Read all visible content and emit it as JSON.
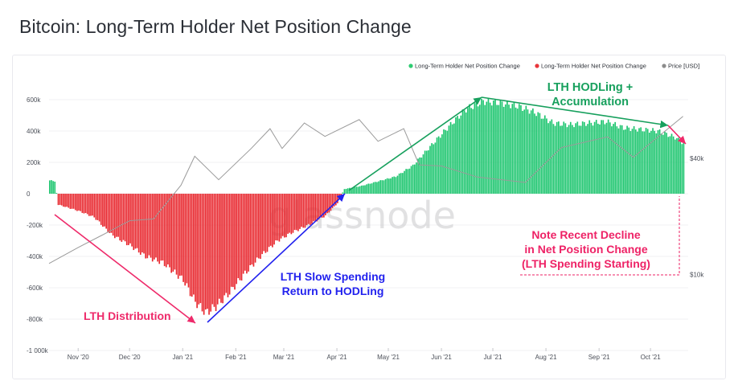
{
  "page": {
    "title": "Bitcoin: Long-Term Holder Net Position Change"
  },
  "watermark": "glassnode",
  "legend": [
    {
      "label": "Long-Term Holder Net Position Change",
      "color": "#2ecc71"
    },
    {
      "label": "Long-Term Holder Net Position Change",
      "color": "#e8363b"
    },
    {
      "label": "Price [USD]",
      "color": "#8c8c8c"
    }
  ],
  "annotations": {
    "distribution": "LTH Distribution",
    "slow_spending_1": "LTH Slow Spending",
    "slow_spending_2": "Return to HODLing",
    "hodling_1": "LTH HODLing +",
    "hodling_2": "Accumulation",
    "note_1": "Note Recent Decline",
    "note_2": "in Net Position Change",
    "note_3": "(LTH Spending Starting)"
  },
  "colors": {
    "positive": "#1cc56e",
    "negative": "#e8262d",
    "price": "#9a9a9a",
    "distribution_arrow": "#ee2a6a",
    "spending_arrow": "#2222ee",
    "hodl_arrow": "#17a05d",
    "note_color": "#ee2266"
  },
  "chart_data": {
    "type": "bar",
    "title": "Bitcoin: Long-Term Holder Net Position Change",
    "x_ticks": [
      "Nov '20",
      "Dec '20",
      "Jan '21",
      "Feb '21",
      "Mar '21",
      "Apr '21",
      "May '21",
      "Jun '21",
      "Jul '21",
      "Aug '21",
      "Sep '21",
      "Oct '21"
    ],
    "x_range": [
      "2020-10-15",
      "2021-10-23"
    ],
    "y_left": {
      "ticks": [
        600000,
        400000,
        200000,
        0,
        -200000,
        -400000,
        -600000,
        -800000,
        -1000000
      ],
      "tick_labels": [
        "600k",
        "400k",
        "200k",
        "0",
        "-200k",
        "-400k",
        "-600k",
        "-800k",
        "-1 000k"
      ],
      "range": [
        -1000000,
        650000
      ]
    },
    "y_right": {
      "scale": "log",
      "tick_labels": [
        "$40k",
        "$10k"
      ],
      "ticks": [
        40000,
        10000
      ]
    },
    "series": [
      {
        "name": "Long-Term Holder Net Position Change",
        "kind": "bar",
        "points": [
          [
            "2020-10-15",
            85000
          ],
          [
            "2020-10-18",
            80000
          ],
          [
            "2020-10-20",
            -70000
          ],
          [
            "2020-11-01",
            -110000
          ],
          [
            "2020-11-10",
            -150000
          ],
          [
            "2020-11-20",
            -260000
          ],
          [
            "2020-12-01",
            -330000
          ],
          [
            "2020-12-10",
            -400000
          ],
          [
            "2020-12-20",
            -440000
          ],
          [
            "2021-01-01",
            -550000
          ],
          [
            "2021-01-08",
            -690000
          ],
          [
            "2021-01-14",
            -760000
          ],
          [
            "2021-01-20",
            -720000
          ],
          [
            "2021-01-28",
            -630000
          ],
          [
            "2021-02-05",
            -520000
          ],
          [
            "2021-02-15",
            -400000
          ],
          [
            "2021-02-25",
            -300000
          ],
          [
            "2021-03-05",
            -250000
          ],
          [
            "2021-03-15",
            -200000
          ],
          [
            "2021-03-25",
            -140000
          ],
          [
            "2021-04-01",
            -60000
          ],
          [
            "2021-04-05",
            30000
          ],
          [
            "2021-04-15",
            50000
          ],
          [
            "2021-04-25",
            80000
          ],
          [
            "2021-05-05",
            110000
          ],
          [
            "2021-05-15",
            180000
          ],
          [
            "2021-05-25",
            300000
          ],
          [
            "2021-06-05",
            430000
          ],
          [
            "2021-06-15",
            540000
          ],
          [
            "2021-06-25",
            590000
          ],
          [
            "2021-07-05",
            580000
          ],
          [
            "2021-07-15",
            560000
          ],
          [
            "2021-07-25",
            520000
          ],
          [
            "2021-08-05",
            450000
          ],
          [
            "2021-08-15",
            440000
          ],
          [
            "2021-08-25",
            450000
          ],
          [
            "2021-09-05",
            460000
          ],
          [
            "2021-09-15",
            420000
          ],
          [
            "2021-09-25",
            410000
          ],
          [
            "2021-10-05",
            400000
          ],
          [
            "2021-10-15",
            360000
          ],
          [
            "2021-10-20",
            320000
          ]
        ]
      },
      {
        "name": "Price [USD]",
        "kind": "line",
        "points": [
          [
            "2020-10-15",
            11400
          ],
          [
            "2020-11-01",
            13800
          ],
          [
            "2020-11-15",
            16000
          ],
          [
            "2020-12-01",
            19000
          ],
          [
            "2020-12-15",
            19400
          ],
          [
            "2020-12-31",
            29000
          ],
          [
            "2021-01-08",
            41000
          ],
          [
            "2021-01-22",
            31000
          ],
          [
            "2021-02-10",
            45000
          ],
          [
            "2021-02-21",
            57000
          ],
          [
            "2021-02-28",
            45000
          ],
          [
            "2021-03-13",
            61000
          ],
          [
            "2021-03-25",
            52000
          ],
          [
            "2021-04-14",
            63500
          ],
          [
            "2021-04-25",
            49000
          ],
          [
            "2021-05-10",
            57000
          ],
          [
            "2021-05-19",
            37000
          ],
          [
            "2021-06-01",
            36500
          ],
          [
            "2021-06-22",
            32000
          ],
          [
            "2021-07-20",
            30000
          ],
          [
            "2021-08-10",
            45500
          ],
          [
            "2021-09-06",
            51700
          ],
          [
            "2021-09-21",
            40500
          ],
          [
            "2021-10-01",
            48000
          ],
          [
            "2021-10-20",
            66000
          ]
        ]
      }
    ]
  }
}
